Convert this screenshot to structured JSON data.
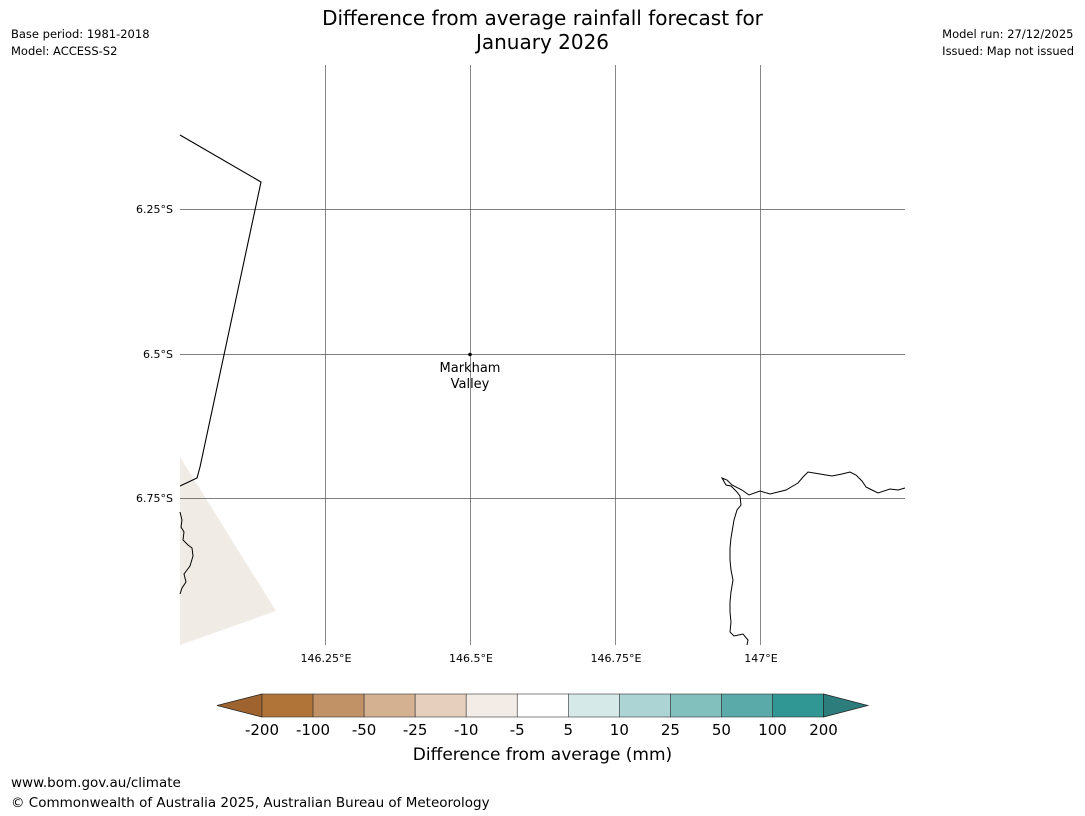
{
  "header": {
    "title_line1": "Difference from average rainfall forecast for",
    "title_line2": "January 2026",
    "base_period": "Base period: 1981-2018",
    "model": "Model: ACCESS-S2",
    "model_run": "Model run: 27/12/2025",
    "issued": "Issued: Map not issued"
  },
  "map": {
    "lat_labels": [
      "6.25°S",
      "6.5°S",
      "6.75°S"
    ],
    "lon_labels": [
      "146.25°E",
      "146.5°E",
      "146.75°E",
      "147°E"
    ],
    "place": {
      "name_line1": "Markham",
      "name_line2": "Valley",
      "lon": 146.5,
      "lat": -6.5
    },
    "colors": {
      "land_fill": "#f1ebe6",
      "gridline": "#555555",
      "coast": "#000000"
    }
  },
  "colorbar": {
    "title": "Difference from average (mm)",
    "tick_labels": [
      "-200",
      "-100",
      "-50",
      "-25",
      "-10",
      "-5",
      "5",
      "10",
      "25",
      "50",
      "100",
      "200"
    ],
    "colors": [
      "#b07439",
      "#c29267",
      "#d4b191",
      "#e6cfbd",
      "#f2ebe6",
      "#ffffff",
      "#d6e9e9",
      "#acd4d4",
      "#81c0bd",
      "#59aaa9",
      "#319795"
    ],
    "low_extend_color": "#9e632e",
    "high_extend_color": "#2c7d7b"
  },
  "footer": {
    "url": "www.bom.gov.au/climate",
    "copyright": "© Commonwealth of Australia 2025, Australian Bureau of Meteorology"
  }
}
